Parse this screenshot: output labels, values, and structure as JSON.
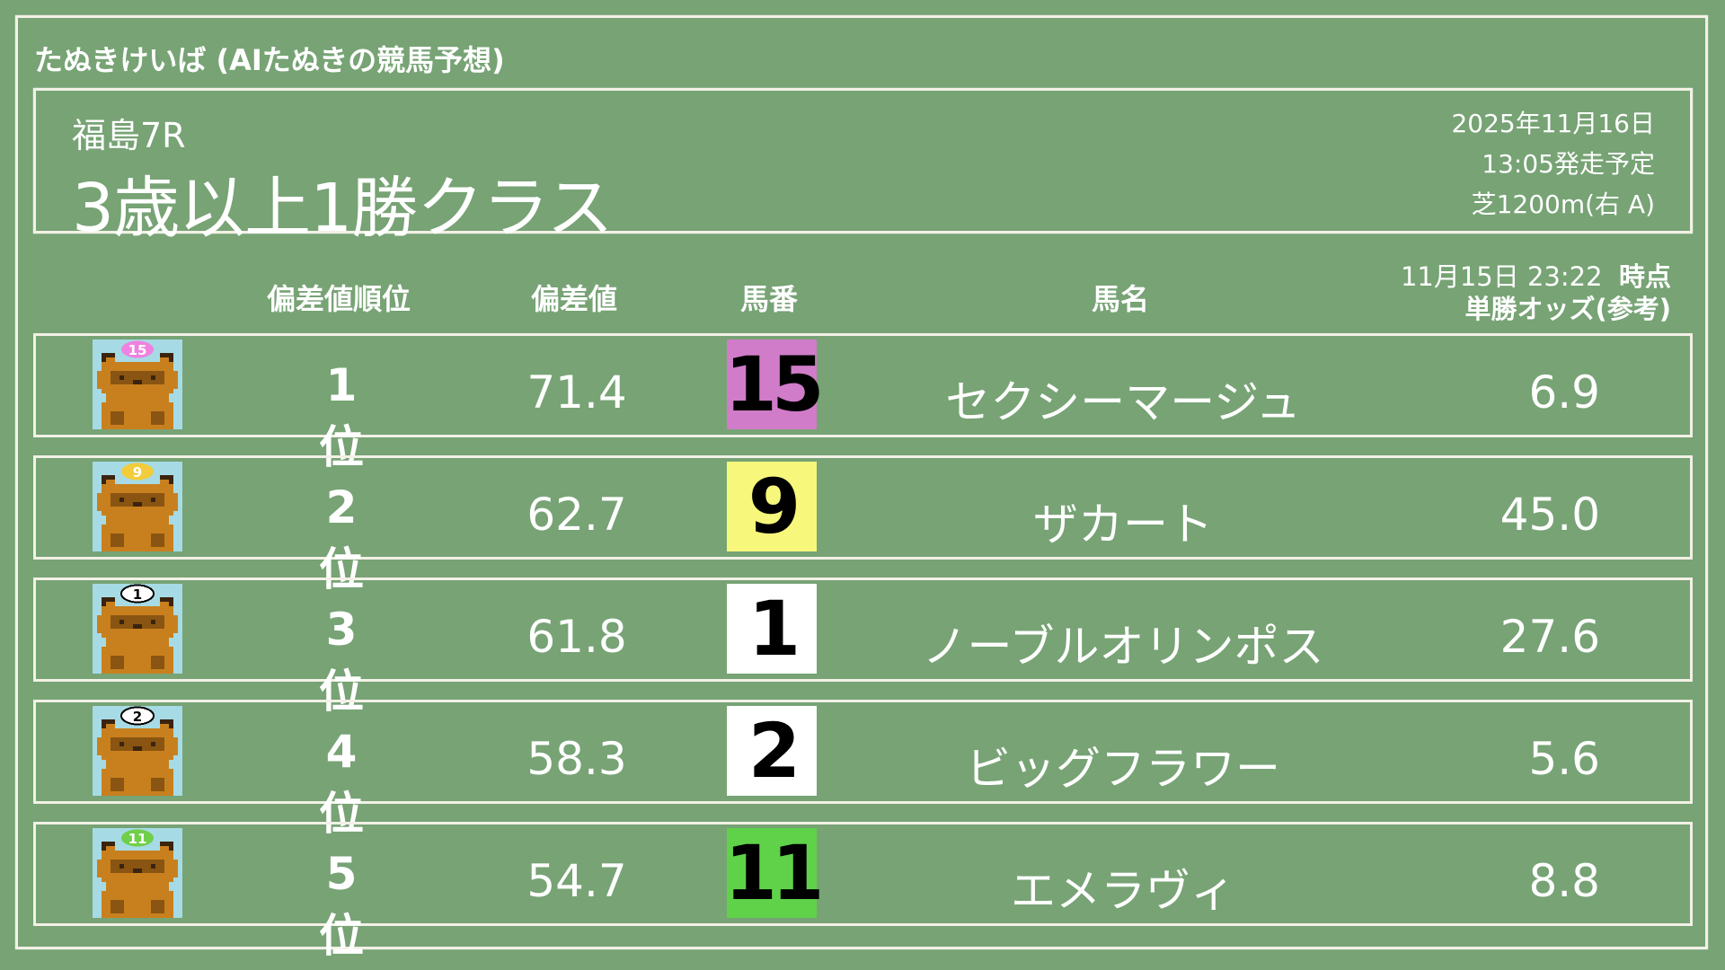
{
  "app_title": "たぬきけいば (AIたぬきの競馬予想)",
  "race": {
    "venue": "福島7R",
    "name": "3歳以上1勝クラス",
    "date": "2025年11月16日",
    "start_time": "13:05発走予定",
    "course": "芝1200m(右 A)"
  },
  "columns": {
    "rank": "偏差値順位",
    "score": "偏差値",
    "number": "馬番",
    "name": "馬名",
    "odds_time": "11月15日 23:22",
    "odds_time_suffix": "時点",
    "odds": "単勝オッズ(参考)"
  },
  "rows": [
    {
      "rank": "1位",
      "score": "71.4",
      "number": "15",
      "name": "セクシーマージュ",
      "odds": "6.9",
      "box_color": "#d07cc9",
      "cap_color": "#ee82e0",
      "cap_text_color": "#ffffff"
    },
    {
      "rank": "2位",
      "score": "62.7",
      "number": "9",
      "name": "ザカート",
      "odds": "45.0",
      "box_color": "#f7f77c",
      "cap_color": "#f2cc3a",
      "cap_text_color": "#ffffff"
    },
    {
      "rank": "3位",
      "score": "61.8",
      "number": "1",
      "name": "ノーブルオリンポス",
      "odds": "27.6",
      "box_color": "#ffffff",
      "cap_color": "#ffffff",
      "cap_text_color": "#000000"
    },
    {
      "rank": "4位",
      "score": "58.3",
      "number": "2",
      "name": "ビッグフラワー",
      "odds": "5.6",
      "box_color": "#ffffff",
      "cap_color": "#ffffff",
      "cap_text_color": "#000000"
    },
    {
      "rank": "5位",
      "score": "54.7",
      "number": "11",
      "name": "エメラヴィ",
      "odds": "8.8",
      "box_color": "#5fd24a",
      "cap_color": "#6fcf4a",
      "cap_text_color": "#ffffff"
    }
  ]
}
